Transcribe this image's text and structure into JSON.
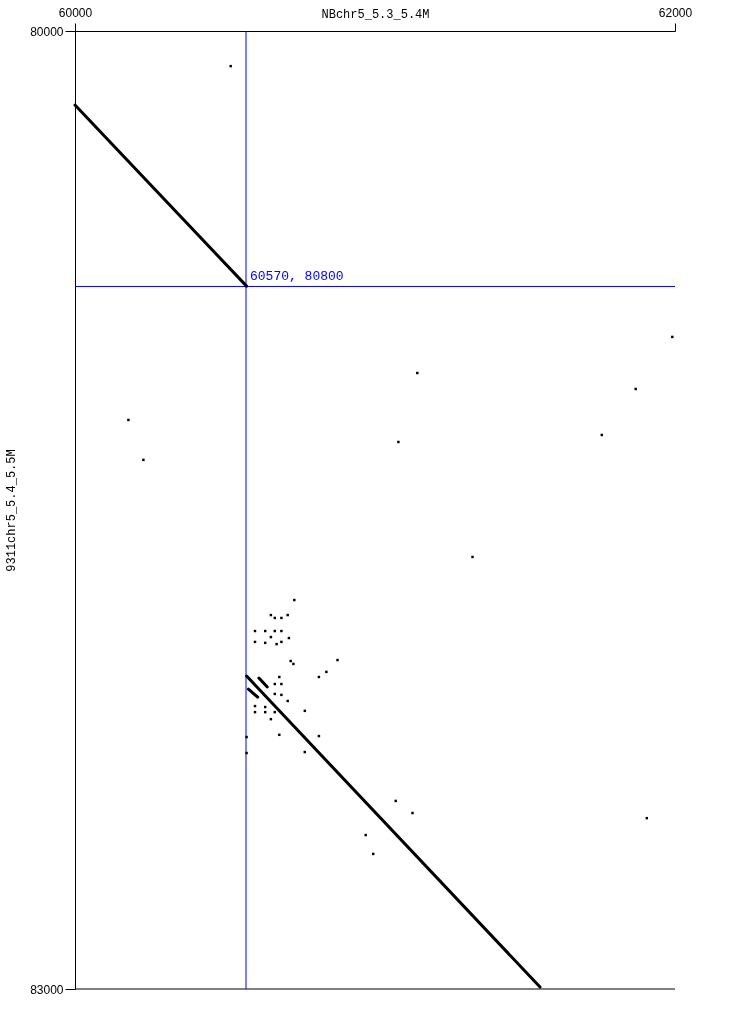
{
  "chart_data": {
    "type": "scatter",
    "xlabel": "NBchr5_5.3_5.4M",
    "ylabel": "9311chr5_5.4_5.5M",
    "xlim": [
      60000,
      62000
    ],
    "xticks": [
      60000,
      62000
    ],
    "ylim": [
      83000,
      80000
    ],
    "yticks": [
      80000,
      83000
    ],
    "grid": false,
    "line_style": "solid",
    "ref_lines": [
      {
        "axis": "x",
        "value": 60570,
        "color": "#0000ff"
      },
      {
        "axis": "y",
        "value": 80800,
        "color": "#0000ff"
      }
    ],
    "annotations": [
      {
        "text": "60570, 80800",
        "x": 60570,
        "y": 80800
      }
    ],
    "series": [
      {
        "type": "line",
        "color": "#000000",
        "x": [
          60000,
          60572
        ],
        "values": [
          80232,
          80799
        ]
      },
      {
        "type": "line",
        "color": "#000000",
        "x": [
          60572,
          61550
        ],
        "values": [
          82020,
          82994
        ]
      },
      {
        "type": "line",
        "color": "#000000",
        "x": [
          60613,
          60641
        ],
        "values": [
          82026,
          82054
        ]
      },
      {
        "type": "line",
        "color": "#000000",
        "x": [
          60578,
          60609
        ],
        "values": [
          82061,
          82086
        ]
      },
      {
        "marker": "square",
        "color": "#000000",
        "x": [
          60519,
          60178,
          60228,
          61141,
          61078,
          61991,
          61869,
          61756,
          61325,
          61906,
          61069,
          61125,
          60969,
          60994,
          60875,
          60838,
          60813,
          60766,
          60813,
          60766,
          60681,
          60731,
          60653,
          60666,
          60688,
          60709,
          60600,
          60634,
          60666,
          60688,
          60600,
          60634,
          60653,
          60672,
          60688,
          60713,
          60719,
          60728,
          60681,
          60666,
          60688,
          60666,
          60688,
          60709,
          60600,
          60634,
          60600,
          60634,
          60666,
          60653,
          60572,
          60572
        ],
        "values": [
          80110,
          81218,
          81343,
          81071,
          81287,
          80958,
          81121,
          81265,
          81647,
          82465,
          82411,
          82449,
          82518,
          82577,
          81970,
          82007,
          82023,
          82129,
          82208,
          82258,
          82204,
          81782,
          81829,
          81838,
          81838,
          81829,
          81879,
          81879,
          81879,
          81879,
          81913,
          81916,
          81898,
          81920,
          81913,
          81901,
          81973,
          81982,
          82023,
          82045,
          82045,
          82076,
          82079,
          82098,
          82114,
          82117,
          82133,
          82133,
          82133,
          82155,
          82211,
          82261
        ]
      }
    ]
  }
}
